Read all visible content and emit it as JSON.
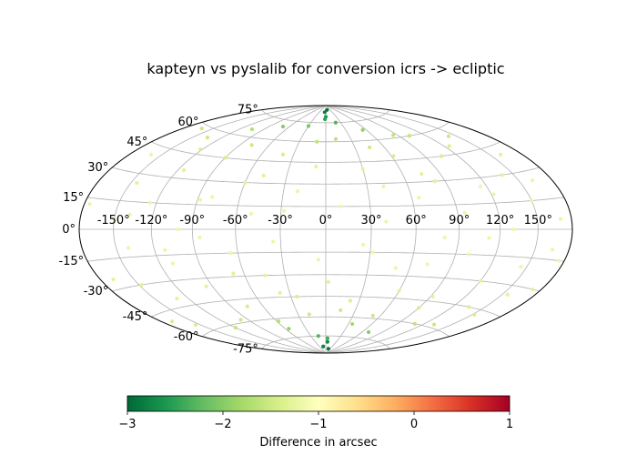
{
  "chart_data": {
    "type": "scatter",
    "projection": "aitoff-hammer",
    "title": "kapteyn vs pyslalib for conversion icrs -> ecliptic",
    "xlim": [
      -180,
      180
    ],
    "ylim": [
      -90,
      90
    ],
    "grid": true,
    "lon_ticks": [
      {
        "value": -150,
        "label": "-150°"
      },
      {
        "value": -120,
        "label": "-120°"
      },
      {
        "value": -90,
        "label": "-90°"
      },
      {
        "value": -60,
        "label": "-60°"
      },
      {
        "value": -30,
        "label": "-30°"
      },
      {
        "value": 0,
        "label": "0°"
      },
      {
        "value": 30,
        "label": "30°"
      },
      {
        "value": 60,
        "label": "60°"
      },
      {
        "value": 90,
        "label": "90°"
      },
      {
        "value": 120,
        "label": "120°"
      },
      {
        "value": 150,
        "label": "150°"
      }
    ],
    "lat_ticks": [
      {
        "value": 75,
        "label": "75°"
      },
      {
        "value": 60,
        "label": "60°"
      },
      {
        "value": 45,
        "label": "45°"
      },
      {
        "value": 30,
        "label": "30°"
      },
      {
        "value": 15,
        "label": "15°"
      },
      {
        "value": 0,
        "label": "0°"
      },
      {
        "value": -15,
        "label": "-15°"
      },
      {
        "value": -30,
        "label": "-30°"
      },
      {
        "value": -45,
        "label": "-45°"
      },
      {
        "value": -60,
        "label": "-60°"
      },
      {
        "value": -75,
        "label": "-75°"
      }
    ],
    "colorbar": {
      "label": "Difference in arcsec",
      "range": [
        -3,
        1
      ],
      "colormap": "RdYlGn_r",
      "ticks": [
        {
          "value": -3,
          "label": "−3"
        },
        {
          "value": -2,
          "label": "−2"
        },
        {
          "value": -1,
          "label": "−1"
        },
        {
          "value": 0,
          "label": "0"
        },
        {
          "value": 1,
          "label": "1"
        }
      ],
      "color_stops": [
        "#006837",
        "#1a9850",
        "#66bd63",
        "#a6d96a",
        "#d9ef8b",
        "#ffffbf",
        "#fee08b",
        "#fdae61",
        "#f46d43",
        "#d73027",
        "#a50026"
      ]
    },
    "points": [
      [
        -175,
        12,
        -1.2
      ],
      [
        -168,
        -25,
        -1.3
      ],
      [
        -160,
        40,
        -1.2
      ],
      [
        -155,
        -55,
        -1.4
      ],
      [
        -150,
        5,
        -1.2
      ],
      [
        -145,
        25,
        -1.3
      ],
      [
        -140,
        -10,
        -1.2
      ],
      [
        -135,
        55,
        -1.5
      ],
      [
        -130,
        -40,
        -1.3
      ],
      [
        -125,
        15,
        -1.2
      ],
      [
        -120,
        -62,
        -1.6
      ],
      [
        -115,
        35,
        -1.3
      ],
      [
        -110,
        -20,
        -1.2
      ],
      [
        -105,
        65,
        -1.7
      ],
      [
        -100,
        0,
        -1.2
      ],
      [
        -95,
        -35,
        -1.3
      ],
      [
        -90,
        45,
        -1.4
      ],
      [
        -85,
        -5,
        -1.2
      ],
      [
        -80,
        20,
        -1.2
      ],
      [
        -75,
        -50,
        -1.4
      ],
      [
        -70,
        70,
        -2.0
      ],
      [
        -65,
        -15,
        -1.2
      ],
      [
        -60,
        30,
        -1.3
      ],
      [
        -55,
        -68,
        -1.9
      ],
      [
        -50,
        10,
        -1.2
      ],
      [
        -45,
        -30,
        -1.3
      ],
      [
        -40,
        50,
        -1.4
      ],
      [
        -35,
        -8,
        -1.2
      ],
      [
        -30,
        72,
        -2.1
      ],
      [
        -25,
        -45,
        -1.4
      ],
      [
        -20,
        25,
        -1.2
      ],
      [
        -15,
        -75,
        -2.3
      ],
      [
        -10,
        60,
        -1.6
      ],
      [
        -5,
        -20,
        -1.2
      ],
      [
        0,
        80,
        -2.6
      ],
      [
        5,
        -80,
        -2.7
      ],
      [
        10,
        15,
        -1.2
      ],
      [
        15,
        -55,
        -1.5
      ],
      [
        20,
        75,
        -2.3
      ],
      [
        25,
        -10,
        -1.2
      ],
      [
        30,
        40,
        -1.3
      ],
      [
        35,
        -65,
        -1.8
      ],
      [
        40,
        5,
        -1.2
      ],
      [
        45,
        55,
        -1.5
      ],
      [
        50,
        -25,
        -1.2
      ],
      [
        55,
        68,
        -1.9
      ],
      [
        60,
        -40,
        -1.3
      ],
      [
        65,
        20,
        -1.2
      ],
      [
        70,
        -70,
        -2.0
      ],
      [
        75,
        35,
        -1.3
      ],
      [
        80,
        -5,
        -1.2
      ],
      [
        85,
        62,
        -1.6
      ],
      [
        90,
        -50,
        -1.4
      ],
      [
        95,
        10,
        -1.2
      ],
      [
        100,
        -15,
        -1.2
      ],
      [
        105,
        45,
        -1.4
      ],
      [
        110,
        -60,
        -1.6
      ],
      [
        115,
        25,
        -1.2
      ],
      [
        120,
        -30,
        -1.3
      ],
      [
        125,
        50,
        -1.4
      ],
      [
        130,
        0,
        -1.2
      ],
      [
        135,
        -45,
        -1.4
      ],
      [
        140,
        30,
        -1.3
      ],
      [
        145,
        -20,
        -1.2
      ],
      [
        150,
        15,
        -1.2
      ],
      [
        155,
        -35,
        -1.3
      ],
      [
        160,
        40,
        -1.3
      ],
      [
        165,
        -10,
        -1.2
      ],
      [
        170,
        5,
        -1.2
      ],
      [
        175,
        -15,
        -1.2
      ],
      [
        -170,
        -50,
        -1.4
      ],
      [
        -162,
        58,
        -1.5
      ],
      [
        -148,
        -30,
        -1.3
      ],
      [
        -138,
        8,
        -1.2
      ],
      [
        -122,
        48,
        -1.4
      ],
      [
        -112,
        -12,
        -1.2
      ],
      [
        -98,
        -58,
        -1.5
      ],
      [
        -88,
        18,
        -1.2
      ],
      [
        -78,
        55,
        -1.5
      ],
      [
        -68,
        -28,
        -1.3
      ],
      [
        -58,
        -62,
        -1.7
      ],
      [
        -48,
        35,
        -1.3
      ],
      [
        -38,
        -42,
        -1.3
      ],
      [
        -28,
        12,
        -1.2
      ],
      [
        -18,
        -58,
        -1.5
      ],
      [
        -8,
        42,
        -1.3
      ],
      [
        2,
        -35,
        -1.3
      ],
      [
        12,
        62,
        -1.6
      ],
      [
        22,
        -48,
        -1.4
      ],
      [
        32,
        -15,
        -1.2
      ],
      [
        42,
        28,
        -1.2
      ],
      [
        52,
        -58,
        -1.5
      ],
      [
        62,
        48,
        -1.4
      ],
      [
        72,
        -22,
        -1.2
      ],
      [
        82,
        30,
        -1.3
      ],
      [
        92,
        -42,
        -1.3
      ],
      [
        102,
        60,
        -1.6
      ],
      [
        112,
        -5,
        -1.2
      ],
      [
        122,
        20,
        -1.2
      ],
      [
        132,
        -58,
        -1.5
      ],
      [
        142,
        55,
        -1.5
      ],
      [
        152,
        -48,
        -1.4
      ],
      [
        162,
        25,
        -1.2
      ],
      [
        172,
        -30,
        -1.3
      ],
      [
        -5,
        84,
        -2.8
      ],
      [
        8,
        86,
        -2.9
      ],
      [
        -12,
        -84,
        -2.8
      ],
      [
        18,
        -86,
        -2.9
      ],
      [
        -2,
        78,
        -2.5
      ],
      [
        4,
        -77,
        -2.4
      ]
    ]
  }
}
